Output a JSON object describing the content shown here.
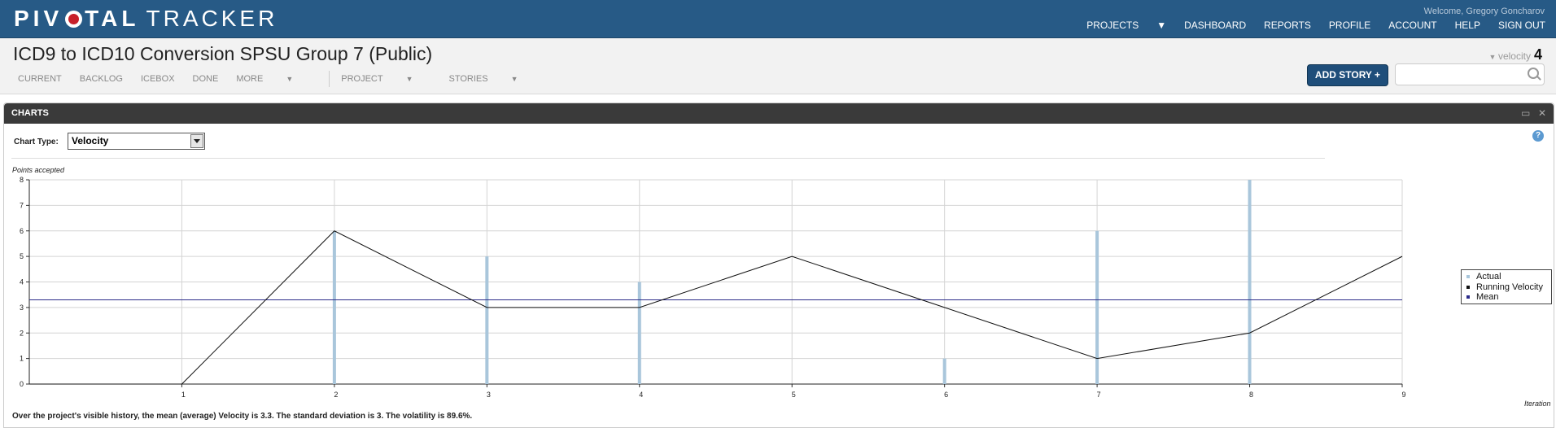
{
  "header": {
    "logo_part1": "PIV",
    "logo_part2": "TAL",
    "logo_part3": "TRACKER",
    "welcome": "Welcome, Gregory Goncharov",
    "nav": [
      "PROJECTS",
      "DASHBOARD",
      "REPORTS",
      "PROFILE",
      "ACCOUNT",
      "HELP",
      "SIGN OUT"
    ]
  },
  "project": {
    "title": "ICD9 to ICD10 Conversion SPSU Group 7 (Public)",
    "tabs": [
      "CURRENT",
      "BACKLOG",
      "ICEBOX",
      "DONE",
      "MORE"
    ],
    "menus": [
      "PROJECT",
      "STORIES"
    ],
    "velocity_label": "velocity",
    "velocity_value": "4",
    "add_story_label": "ADD STORY +",
    "search_placeholder": ""
  },
  "panel": {
    "title": "CHARTS",
    "chart_type_label": "Chart Type:",
    "chart_type_value": "Velocity",
    "summary": "Over the project's visible history, the mean (average) Velocity is 3.3. The standard deviation is 3. The volatility is 89.6%."
  },
  "chart_data": {
    "type": "bar",
    "ylabel": "Points accepted",
    "xlabel": "Iteration",
    "ylim": [
      0,
      8
    ],
    "xlim": [
      0,
      9
    ],
    "yticks": [
      0,
      1,
      2,
      3,
      4,
      5,
      6,
      7,
      8
    ],
    "xticks": [
      1,
      2,
      3,
      4,
      5,
      6,
      7,
      8,
      9
    ],
    "series": [
      {
        "name": "Actual",
        "type": "bar",
        "color": "#a9c6db",
        "x": [
          1,
          2,
          3,
          4,
          5,
          6,
          7,
          8
        ],
        "values": [
          0,
          6,
          5,
          4,
          0,
          1,
          6,
          8
        ]
      },
      {
        "name": "Running Velocity",
        "type": "line",
        "color": "#111111",
        "x": [
          0,
          1,
          2,
          3,
          4,
          5,
          6,
          7,
          8,
          9
        ],
        "values": [
          0,
          0,
          6,
          3,
          3,
          5,
          3,
          1,
          2,
          5
        ]
      },
      {
        "name": "Mean",
        "type": "hline",
        "color": "#2b2b8a",
        "value": 3.3
      }
    ],
    "legend": "right",
    "grid": true
  }
}
